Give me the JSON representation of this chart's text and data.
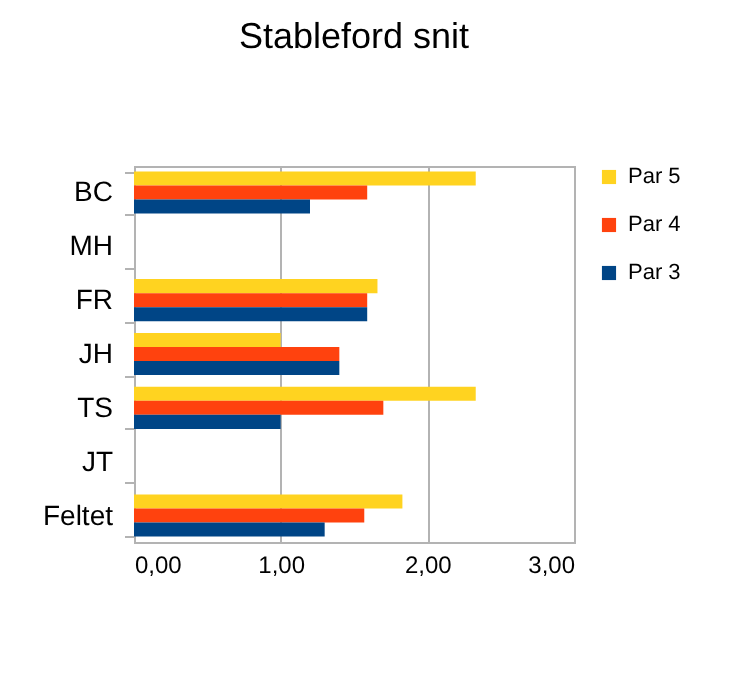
{
  "chart_data": {
    "type": "bar",
    "orientation": "horizontal",
    "title": "Stableford snit",
    "categories": [
      "BC",
      "MH",
      "FR",
      "JH",
      "TS",
      "JT",
      "Feltet"
    ],
    "series": [
      {
        "name": "Par 5",
        "color": "#ffd320",
        "values": [
          2.33,
          null,
          1.66,
          1.0,
          2.33,
          null,
          1.83
        ]
      },
      {
        "name": "Par 4",
        "color": "#ff420e",
        "values": [
          1.59,
          null,
          1.59,
          1.4,
          1.7,
          null,
          1.57
        ]
      },
      {
        "name": "Par 3",
        "color": "#004586",
        "values": [
          1.2,
          null,
          1.59,
          1.4,
          1.0,
          null,
          1.3
        ]
      }
    ],
    "xlim": [
      0,
      3
    ],
    "xticks": [
      {
        "value": 0,
        "label": "0,00"
      },
      {
        "value": 1,
        "label": "1,00"
      },
      {
        "value": 2,
        "label": "2,00"
      },
      {
        "value": 3,
        "label": "3,00"
      }
    ],
    "grid": "x",
    "legend": "right"
  }
}
